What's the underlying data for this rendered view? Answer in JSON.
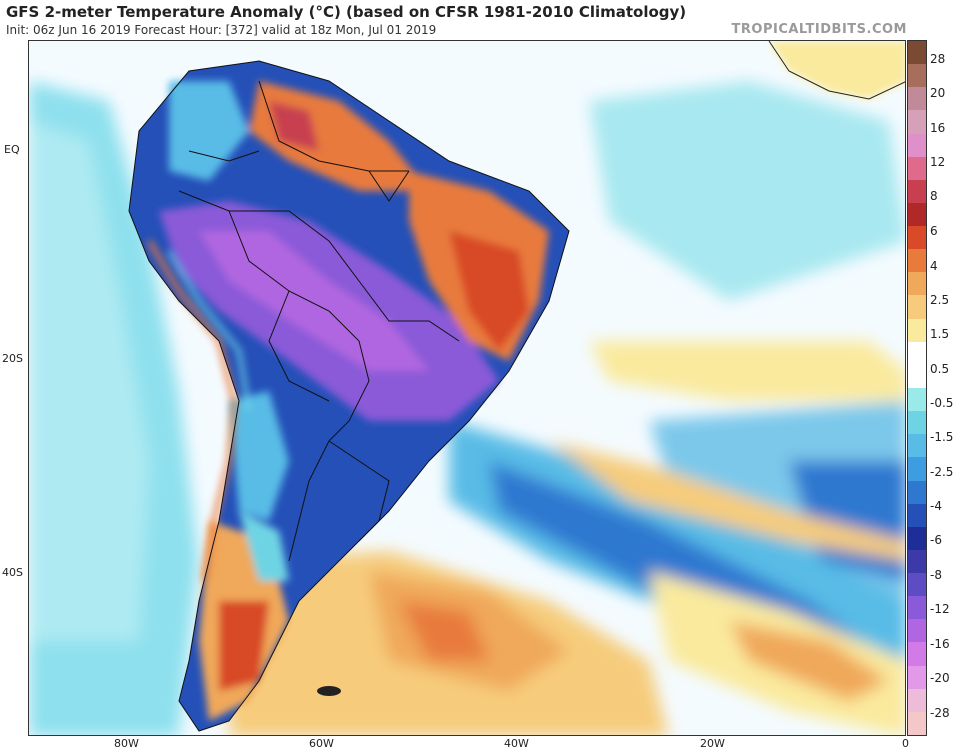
{
  "header": {
    "title": "GFS 2-meter Temperature Anomaly (°C) (based on CFSR 1981-2010 Climatology)",
    "subtitle": "Init: 06z Jun 16 2019   Forecast Hour: [372]   valid at 18z Mon, Jul 01 2019",
    "brand": "TROPICALTIDBITS.COM"
  },
  "map": {
    "lat_labels": [
      "EQ",
      "20S",
      "40S"
    ],
    "lon_labels": [
      "80W",
      "60W",
      "40W",
      "20W",
      "0"
    ]
  },
  "colorbar": {
    "labels": [
      "28",
      "20",
      "16",
      "12",
      "8",
      "6",
      "4",
      "2.5",
      "1.5",
      "0.5",
      "-0.5",
      "-1.5",
      "-2.5",
      "-4",
      "-6",
      "-8",
      "-12",
      "-16",
      "-20",
      "-28"
    ],
    "colors": [
      "#7a4a32",
      "#a86e5c",
      "#c08a9a",
      "#d6a0b8",
      "#e090c8",
      "#e06a8c",
      "#c84050",
      "#b02828",
      "#d84a28",
      "#e87a3c",
      "#f0a85a",
      "#f6cc7c",
      "#faea9e",
      "#ffffff",
      "#ffffff",
      "#9aeaea",
      "#6ed4e4",
      "#58bce6",
      "#3e9ce0",
      "#2e78d0",
      "#2450b8",
      "#1e2e98",
      "#3c3aa8",
      "#5e4cc4",
      "#8a5ad8",
      "#b066e0",
      "#d27ae8",
      "#e29ae8",
      "#ecbcd8",
      "#f4c8c8"
    ]
  }
}
